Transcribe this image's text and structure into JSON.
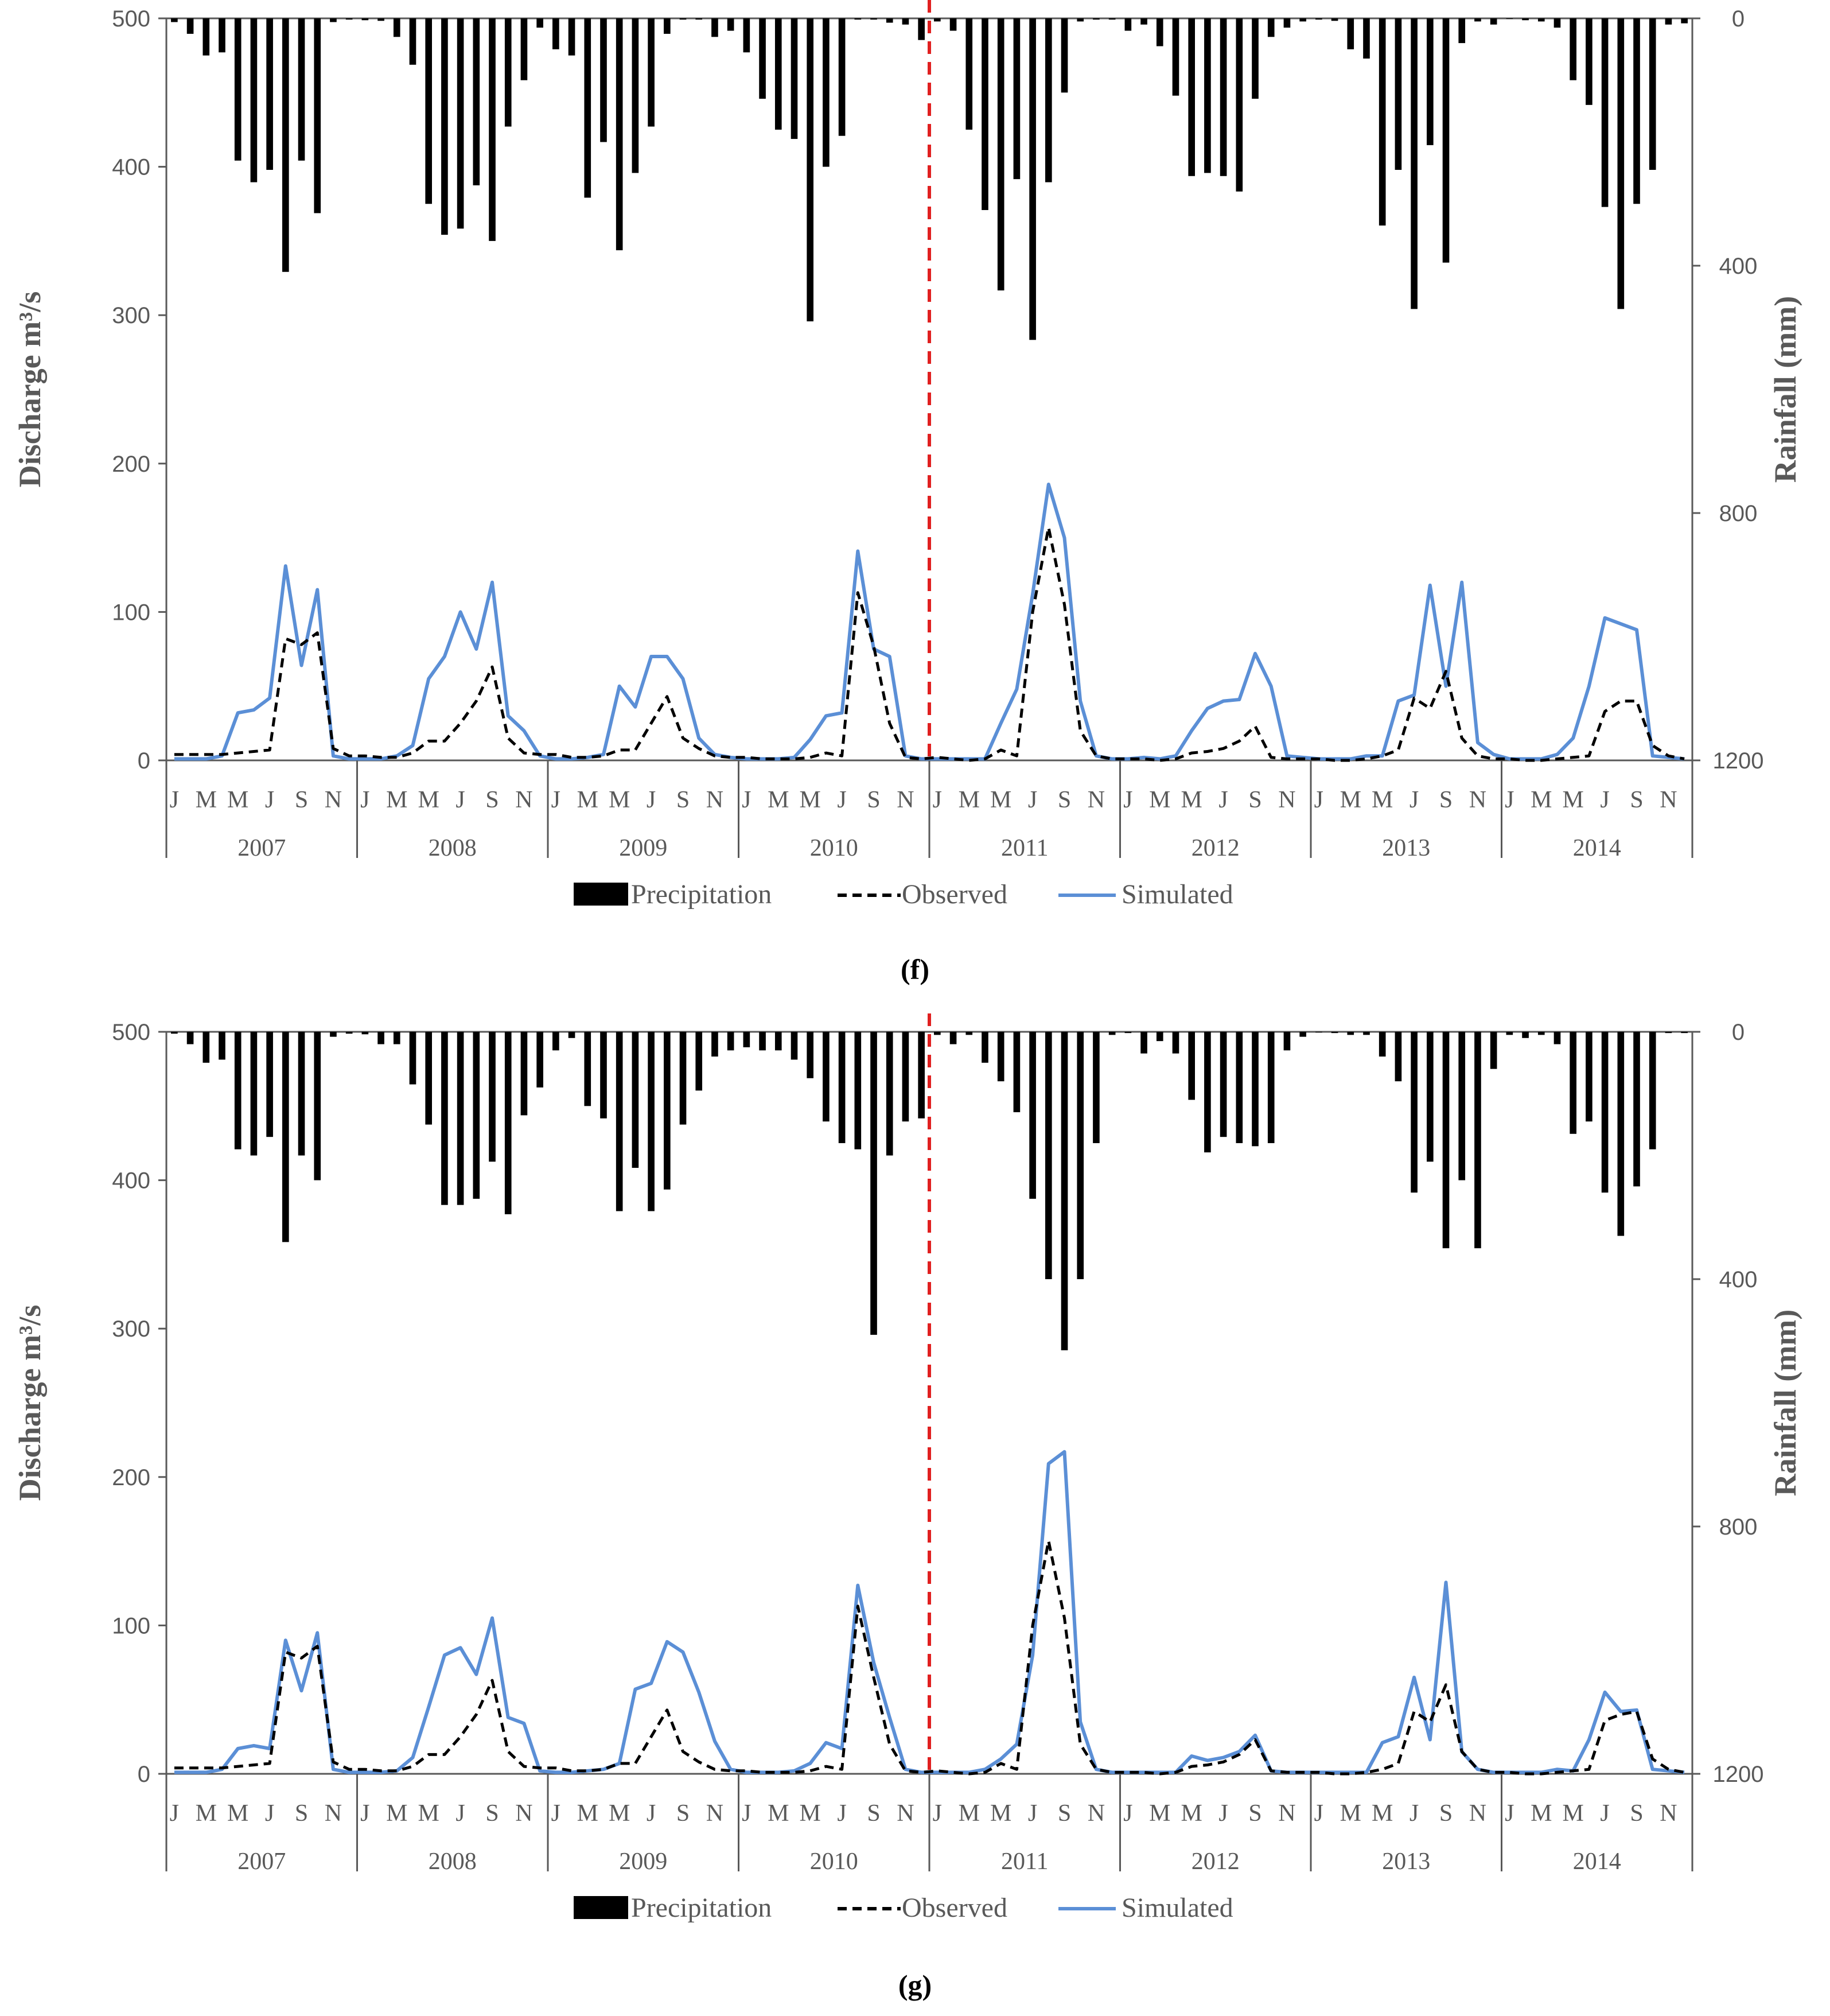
{
  "colors": {
    "precipitation": "#000000",
    "observed": "#000000",
    "simulated": "#5b8fd6",
    "divider": "#e02020",
    "axis": "#595959",
    "text": "#595959"
  },
  "months": [
    "J",
    "M",
    "M",
    "J",
    "S",
    "N"
  ],
  "years": [
    "2007",
    "2008",
    "2009",
    "2010",
    "2011",
    "2012",
    "2013",
    "2014"
  ],
  "chart_data": [
    {
      "type": "bar+line",
      "panel": "f",
      "caption": "(f)",
      "ylabel_left": "Discharge m³/s",
      "ylabel_right": "Rainfall (mm)",
      "ylim_left": [
        0,
        500
      ],
      "yticks_left": [
        "0",
        "100",
        "200",
        "300",
        "400",
        "500"
      ],
      "ylim_right": [
        0,
        1200
      ],
      "yticks_right": [
        "1200",
        "800",
        "400",
        "0"
      ],
      "calibration_split_month_index": 48,
      "legend": [
        "Precipitation",
        "Observed",
        "Simulated"
      ],
      "precipitation_mm": [
        6,
        25,
        60,
        55,
        230,
        265,
        245,
        410,
        230,
        315,
        6,
        2,
        3,
        4,
        30,
        75,
        300,
        350,
        340,
        270,
        360,
        175,
        100,
        15,
        50,
        60,
        290,
        200,
        375,
        250,
        175,
        25,
        2,
        2,
        30,
        20,
        55,
        130,
        180,
        195,
        490,
        240,
        190,
        2,
        2,
        7,
        10,
        35,
        5,
        20,
        180,
        310,
        440,
        260,
        520,
        265,
        120,
        5,
        2,
        2,
        20,
        10,
        45,
        125,
        255,
        250,
        255,
        280,
        130,
        30,
        15,
        5,
        2,
        4,
        50,
        65,
        335,
        245,
        470,
        205,
        395,
        40,
        5,
        10,
        1,
        3,
        5,
        15,
        100,
        140,
        305,
        470,
        300,
        245,
        10,
        8
      ],
      "observed": [
        4,
        4,
        4,
        4,
        5,
        6,
        7,
        82,
        78,
        86,
        8,
        3,
        3,
        2,
        2,
        5,
        13,
        13,
        25,
        40,
        63,
        15,
        5,
        4,
        4,
        2,
        2,
        3,
        7,
        7,
        25,
        43,
        15,
        8,
        3,
        2,
        2,
        1,
        1,
        1,
        2,
        5,
        3,
        113,
        77,
        25,
        2,
        1,
        2,
        1,
        0,
        1,
        7,
        3,
        100,
        157,
        105,
        20,
        3,
        1,
        1,
        1,
        0,
        1,
        5,
        6,
        8,
        13,
        23,
        2,
        1,
        1,
        1,
        0,
        0,
        1,
        3,
        7,
        42,
        35,
        60,
        15,
        3,
        1,
        1,
        0,
        0,
        1,
        2,
        3,
        33,
        40,
        40,
        10,
        3,
        1
      ],
      "simulated": [
        1,
        1,
        1,
        3,
        32,
        34,
        42,
        131,
        64,
        115,
        3,
        1,
        1,
        1,
        3,
        10,
        55,
        70,
        100,
        75,
        120,
        30,
        20,
        3,
        1,
        1,
        2,
        4,
        50,
        36,
        70,
        70,
        55,
        15,
        4,
        2,
        1,
        1,
        1,
        2,
        14,
        30,
        32,
        141,
        75,
        70,
        3,
        1,
        1,
        1,
        1,
        1,
        25,
        48,
        112,
        186,
        150,
        40,
        3,
        1,
        1,
        2,
        1,
        3,
        20,
        35,
        40,
        41,
        72,
        50,
        3,
        2,
        1,
        1,
        1,
        3,
        3,
        40,
        44,
        118,
        50,
        120,
        12,
        4,
        1,
        1,
        1,
        4,
        15,
        50,
        96,
        92,
        88,
        3,
        2,
        1
      ]
    },
    {
      "type": "bar+line",
      "panel": "g",
      "caption": "(g)",
      "ylabel_left": "Discharge m³/s",
      "ylabel_right": "Rainfall (mm)",
      "ylim_left": [
        0,
        500
      ],
      "yticks_left": [
        "0",
        "100",
        "200",
        "300",
        "400",
        "500"
      ],
      "ylim_right": [
        0,
        1200
      ],
      "yticks_right": [
        "1200",
        "800",
        "400",
        "0"
      ],
      "calibration_split_month_index": 48,
      "legend": [
        "Precipitation",
        "Observed",
        "Simulated"
      ],
      "precipitation_mm": [
        3,
        20,
        50,
        45,
        190,
        200,
        170,
        340,
        200,
        240,
        8,
        3,
        4,
        20,
        20,
        85,
        150,
        280,
        280,
        270,
        210,
        295,
        135,
        90,
        30,
        10,
        120,
        140,
        290,
        220,
        290,
        255,
        150,
        95,
        40,
        30,
        25,
        30,
        30,
        45,
        75,
        145,
        180,
        190,
        490,
        200,
        145,
        140,
        5,
        20,
        5,
        50,
        80,
        130,
        270,
        400,
        515,
        400,
        180,
        5,
        2,
        35,
        15,
        35,
        110,
        195,
        170,
        180,
        185,
        180,
        30,
        8,
        1,
        2,
        5,
        5,
        40,
        80,
        260,
        210,
        350,
        240,
        350,
        60,
        5,
        10,
        5,
        20,
        165,
        145,
        260,
        330,
        250,
        190,
        2,
        2
      ],
      "observed": [
        4,
        4,
        4,
        4,
        5,
        6,
        7,
        82,
        78,
        86,
        8,
        3,
        3,
        2,
        2,
        5,
        13,
        13,
        25,
        40,
        63,
        15,
        5,
        4,
        4,
        2,
        2,
        3,
        7,
        7,
        25,
        43,
        15,
        8,
        3,
        2,
        2,
        1,
        1,
        1,
        2,
        5,
        3,
        113,
        65,
        20,
        2,
        1,
        2,
        1,
        0,
        1,
        7,
        3,
        100,
        157,
        105,
        20,
        3,
        1,
        1,
        1,
        0,
        1,
        5,
        6,
        8,
        13,
        23,
        2,
        1,
        1,
        1,
        0,
        0,
        1,
        3,
        7,
        42,
        35,
        60,
        15,
        3,
        1,
        1,
        0,
        0,
        1,
        2,
        3,
        36,
        40,
        42,
        10,
        3,
        1
      ],
      "simulated": [
        1,
        1,
        1,
        3,
        17,
        19,
        17,
        90,
        56,
        95,
        3,
        1,
        1,
        1,
        2,
        11,
        45,
        80,
        85,
        67,
        105,
        38,
        34,
        2,
        1,
        1,
        2,
        3,
        7,
        57,
        61,
        89,
        82,
        55,
        22,
        3,
        1,
        1,
        1,
        2,
        7,
        21,
        17,
        127,
        75,
        38,
        3,
        1,
        1,
        1,
        1,
        3,
        10,
        20,
        80,
        209,
        217,
        35,
        3,
        1,
        1,
        1,
        1,
        1,
        12,
        9,
        11,
        15,
        26,
        2,
        1,
        1,
        1,
        1,
        1,
        1,
        21,
        25,
        65,
        23,
        129,
        15,
        3,
        1,
        1,
        1,
        1,
        3,
        2,
        23,
        55,
        42,
        43,
        3,
        2,
        1
      ]
    }
  ]
}
